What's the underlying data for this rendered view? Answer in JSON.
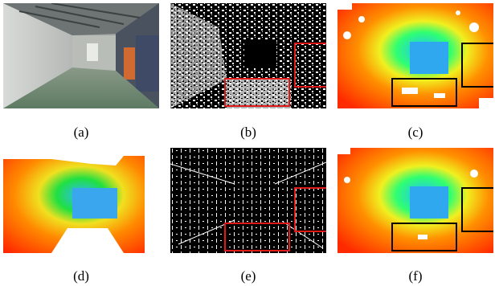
{
  "figure": {
    "panels": [
      {
        "id": "a",
        "caption": "(a)",
        "kind": "rgb-photo"
      },
      {
        "id": "b",
        "caption": "(b)",
        "kind": "binary-mask",
        "box_color": "#e01818"
      },
      {
        "id": "c",
        "caption": "(c)",
        "kind": "depth-map",
        "box_color": "#000000"
      },
      {
        "id": "d",
        "caption": "(d)",
        "kind": "depth-map"
      },
      {
        "id": "e",
        "caption": "(e)",
        "kind": "binary-mask",
        "box_color": "#e01818"
      },
      {
        "id": "f",
        "caption": "(f)",
        "kind": "depth-map",
        "box_color": "#000000"
      }
    ]
  }
}
